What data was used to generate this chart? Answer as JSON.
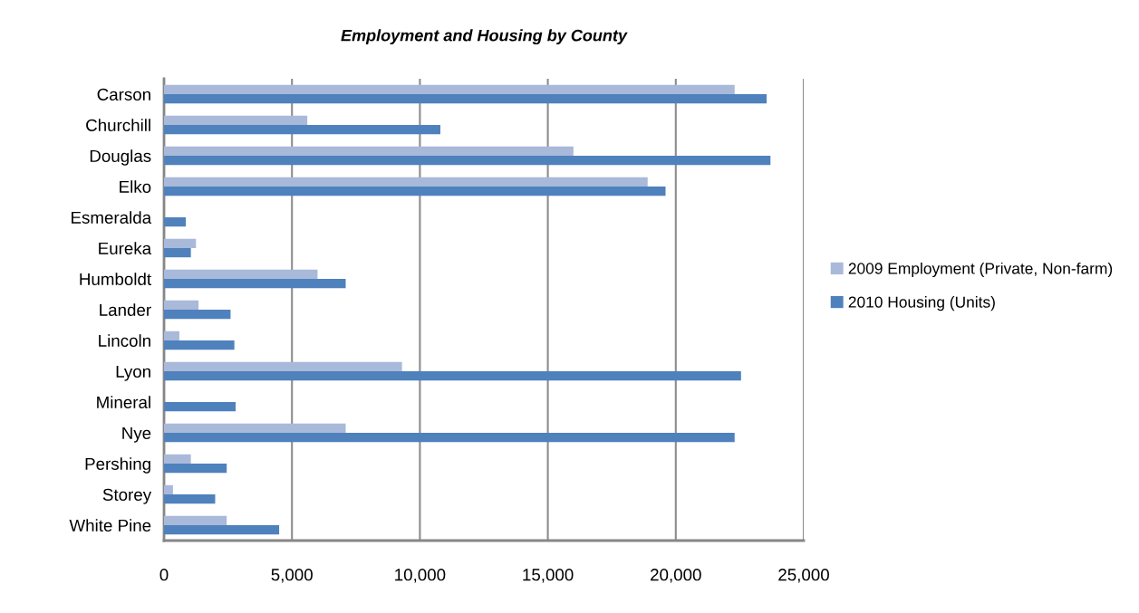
{
  "chart_data": {
    "type": "bar",
    "orientation": "horizontal",
    "title": "Employment and Housing by County",
    "categories": [
      "Carson",
      "Churchill",
      "Douglas",
      "Elko",
      "Esmeralda",
      "Eureka",
      "Humboldt",
      "Lander",
      "Lincoln",
      "Lyon",
      "Mineral",
      "Nye",
      "Pershing",
      "Storey",
      "White Pine"
    ],
    "series": [
      {
        "name": "2009 Employment (Private, Non-farm)",
        "color": "#a9b9d9",
        "values": [
          22300,
          5600,
          16000,
          18900,
          null,
          1250,
          6000,
          1350,
          600,
          9300,
          null,
          7100,
          1050,
          350,
          2450
        ]
      },
      {
        "name": "2010 Housing (Units)",
        "color": "#4f81bd",
        "values": [
          23550,
          10800,
          23700,
          19600,
          850,
          1050,
          7100,
          2600,
          2750,
          22550,
          2800,
          22300,
          2450,
          2000,
          4500
        ]
      }
    ],
    "xlim": [
      0,
      25000
    ],
    "xticks": [
      0,
      {
        "value": 5000,
        "label": "5,000"
      },
      {
        "value": 10000,
        "label": "10,000"
      },
      {
        "value": 15000,
        "label": "15,000"
      },
      {
        "value": 20000,
        "label": "20,000"
      },
      {
        "value": 25000,
        "label": "25,000"
      }
    ],
    "grid": "x",
    "legend": "right"
  }
}
